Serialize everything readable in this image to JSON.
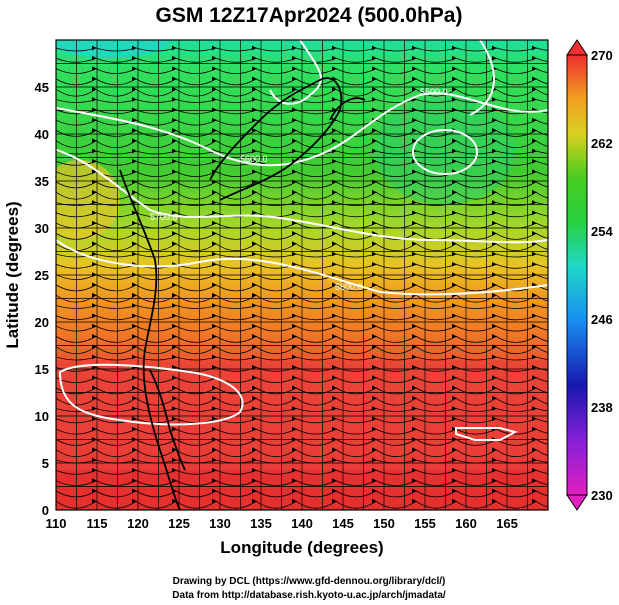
{
  "title": "GSM 12Z17Apr2024 (500.0hPa)",
  "xlabel": "Longitude (degrees)",
  "ylabel": "Latitude  (degrees)",
  "x_ticks": [
    "110",
    "115",
    "120",
    "125",
    "130",
    "135",
    "140",
    "145",
    "150",
    "155",
    "160",
    "165"
  ],
  "y_ticks": [
    "0",
    "5",
    "10",
    "15",
    "20",
    "25",
    "30",
    "35",
    "40",
    "45"
  ],
  "colorbar_ticks": [
    "230",
    "238",
    "246",
    "254",
    "262",
    "270"
  ],
  "contour_labels": [
    "5800.0",
    "5700.0",
    "5600.0",
    "5500.0"
  ],
  "credit_line1": "Drawing by DCL (https://www.gfd-dennou.org/library/dcl/)",
  "credit_line2": "Data from http://database.rish.kyoto-u.ac.jp/arch/jmadata/",
  "colors": {
    "hot": "#ee3a3a",
    "warm": "#f07a1e",
    "mild": "#c8d81e",
    "cool": "#34c83c",
    "cold": "#20d2b8",
    "contour": "#ffffff"
  }
}
